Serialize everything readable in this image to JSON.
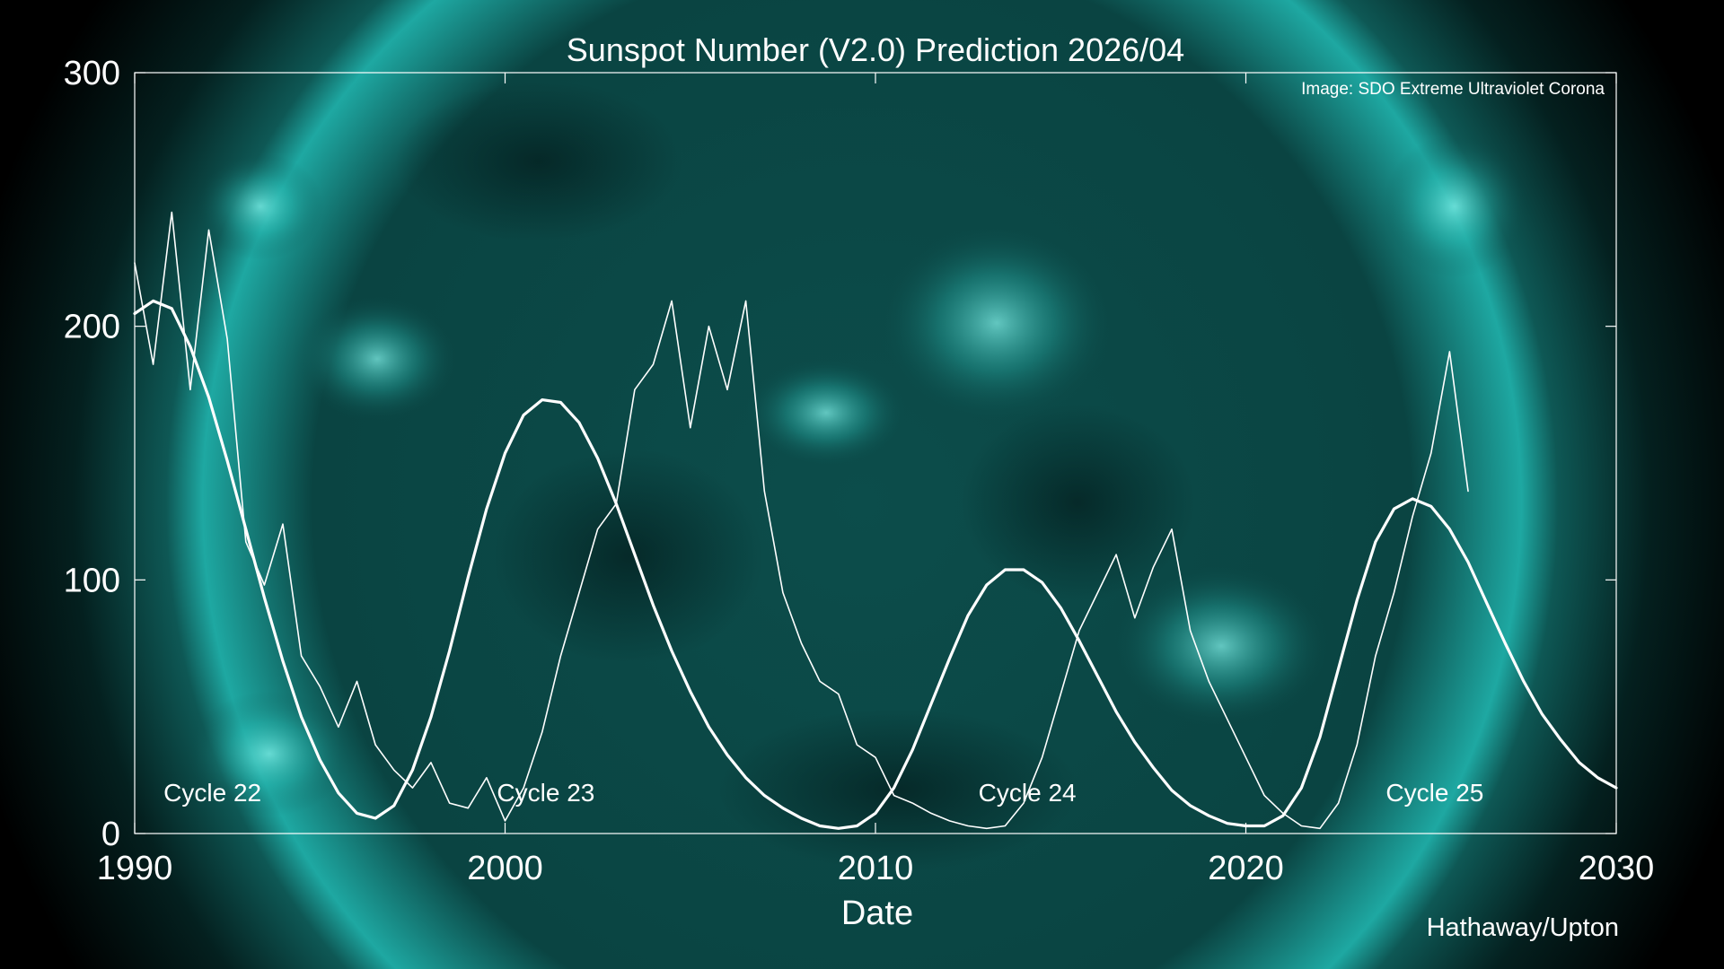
{
  "chart_data": {
    "type": "line",
    "title": "Sunspot Number (V2.0) Prediction 2026/04",
    "xlabel": "Date",
    "ylabel": "",
    "xlim": [
      1990,
      2030
    ],
    "ylim": [
      0,
      300
    ],
    "x_ticks": [
      "1990",
      "2000",
      "2010",
      "2020",
      "2030"
    ],
    "y_ticks": [
      "0",
      "100",
      "200",
      "300"
    ],
    "grid": false,
    "annotations": {
      "image_credit": "Image: SDO Extreme Ultraviolet Corona",
      "author": "Hathaway/Upton"
    },
    "cycle_labels": [
      {
        "text": "Cycle 22",
        "x": 1992.1
      },
      {
        "text": "Cycle 23",
        "x": 2001.1
      },
      {
        "text": "Cycle 24",
        "x": 2014.1
      },
      {
        "text": "Cycle 25",
        "x": 2025.1
      }
    ],
    "series": [
      {
        "x": [
          1990.0,
          1990.5,
          1991.0,
          1991.5,
          1992.0,
          1992.5,
          1993.0,
          1993.5,
          1994.0,
          1994.5,
          1995.0,
          1995.5,
          1996.0,
          1996.5,
          1997.0,
          1997.5,
          1998.0,
          1998.5,
          1999.0,
          1999.5,
          2000.0,
          2000.5,
          2001.0,
          2001.5,
          2002.0,
          2002.5,
          2003.0,
          2003.5,
          2004.0,
          2004.5,
          2005.0,
          2005.5,
          2006.0,
          2006.5,
          2007.0,
          2007.5,
          2008.0,
          2008.5,
          2009.0,
          2009.5,
          2010.0,
          2010.5,
          2011.0,
          2011.5,
          2012.0,
          2012.5,
          2013.0,
          2013.5,
          2014.0,
          2014.5,
          2015.0,
          2015.5,
          2016.0,
          2016.5,
          2017.0,
          2017.5,
          2018.0,
          2018.5,
          2019.0,
          2019.5,
          2020.0,
          2020.5,
          2021.0,
          2021.5,
          2022.0,
          2022.5,
          2023.0,
          2023.5,
          2024.0,
          2024.5,
          2025.0,
          2025.5,
          2026.0
        ],
        "y": [
          225,
          185,
          245,
          175,
          238,
          195,
          115,
          98,
          122,
          70,
          58,
          42,
          60,
          35,
          25,
          18,
          28,
          12,
          10,
          22,
          5,
          18,
          40,
          70,
          95,
          120,
          130,
          175,
          185,
          210,
          160,
          200,
          175,
          210,
          135,
          95,
          75,
          60,
          55,
          35,
          30,
          15,
          12,
          8,
          5,
          3,
          2,
          3,
          12,
          30,
          55,
          80,
          95,
          110,
          85,
          105,
          120,
          80,
          60,
          45,
          30,
          15,
          8,
          3,
          2,
          12,
          35,
          70,
          95,
          125,
          150,
          190,
          135
        ]
      },
      {
        "x": [
          1990.0,
          1990.5,
          1991.0,
          1991.5,
          1992.0,
          1992.5,
          1993.0,
          1993.5,
          1994.0,
          1994.5,
          1995.0,
          1995.5,
          1996.0,
          1996.5,
          1997.0,
          1997.5,
          1998.0,
          1998.5,
          1999.0,
          1999.5,
          2000.0,
          2000.5,
          2001.0,
          2001.5,
          2002.0,
          2002.5,
          2003.0,
          2003.5,
          2004.0,
          2004.5,
          2005.0,
          2005.5,
          2006.0,
          2006.5,
          2007.0,
          2007.5,
          2008.0,
          2008.5,
          2009.0,
          2009.5,
          2010.0,
          2010.5,
          2011.0,
          2011.5,
          2012.0,
          2012.5,
          2013.0,
          2013.5,
          2014.0,
          2014.5,
          2015.0,
          2015.5,
          2016.0,
          2016.5,
          2017.0,
          2017.5,
          2018.0,
          2018.5,
          2019.0,
          2019.5,
          2020.0,
          2020.5,
          2021.0,
          2021.5,
          2022.0,
          2022.5,
          2023.0,
          2023.5,
          2024.0,
          2024.5,
          2025.0,
          2025.5,
          2026.0,
          2026.5,
          2027.0,
          2027.5,
          2028.0,
          2028.5,
          2029.0,
          2029.5,
          2030.0
        ],
        "y": [
          205,
          210,
          207,
          192,
          172,
          147,
          120,
          93,
          68,
          46,
          29,
          16,
          8,
          6,
          11,
          25,
          46,
          72,
          101,
          128,
          150,
          165,
          171,
          170,
          162,
          148,
          130,
          110,
          90,
          72,
          56,
          42,
          31,
          22,
          15,
          10,
          6,
          3,
          2,
          3,
          8,
          18,
          33,
          51,
          69,
          86,
          98,
          104,
          104,
          99,
          89,
          76,
          62,
          48,
          36,
          26,
          17,
          11,
          7,
          4,
          3,
          3,
          7,
          18,
          38,
          65,
          92,
          115,
          128,
          132,
          129,
          120,
          107,
          91,
          75,
          60,
          47,
          37,
          28,
          22,
          18
        ]
      }
    ]
  }
}
